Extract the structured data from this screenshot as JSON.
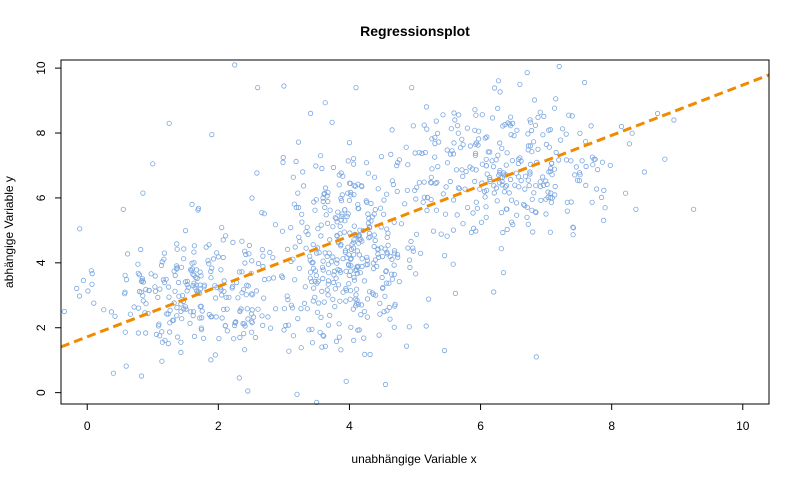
{
  "chart_data": {
    "type": "scatter",
    "title": "Regressionsplot",
    "xlabel": "unabhängige Variable x",
    "ylabel": "abhängige Variable y",
    "xlim": [
      -0.4,
      10.4
    ],
    "ylim": [
      -0.35,
      10.25
    ],
    "xticks": [
      0,
      2,
      4,
      6,
      8,
      10
    ],
    "yticks": [
      0,
      2,
      4,
      6,
      8,
      10
    ],
    "point_color": "#7aa6e0",
    "regression_line": {
      "intercept": 1.72,
      "slope": 0.776,
      "color": "#f08a00",
      "style": "dashed"
    },
    "clusters": [
      {
        "cx": 1.7,
        "cy": 3.1,
        "sx": 0.75,
        "sy": 1.0,
        "n": 260
      },
      {
        "cx": 4.0,
        "cy": 4.4,
        "sx": 0.55,
        "sy": 1.5,
        "n": 360
      },
      {
        "cx": 6.4,
        "cy": 6.9,
        "sx": 0.85,
        "sy": 1.05,
        "n": 300
      }
    ],
    "outliers": [
      {
        "x": 2.25,
        "y": 10.1
      },
      {
        "x": 7.2,
        "y": 10.05
      },
      {
        "x": 9.25,
        "y": 5.65
      },
      {
        "x": 8.95,
        "y": 8.4
      },
      {
        "x": 3.5,
        "y": -0.3
      },
      {
        "x": 3.2,
        "y": -0.05
      },
      {
        "x": 5.45,
        "y": 1.3
      },
      {
        "x": 6.85,
        "y": 1.1
      },
      {
        "x": 1.25,
        "y": 8.3
      },
      {
        "x": 0.4,
        "y": 0.6
      },
      {
        "x": -0.35,
        "y": 2.5
      },
      {
        "x": 2.6,
        "y": 9.4
      },
      {
        "x": 3.0,
        "y": 9.45
      },
      {
        "x": 4.1,
        "y": 9.4
      },
      {
        "x": 4.95,
        "y": 9.4
      },
      {
        "x": 6.6,
        "y": 9.5
      },
      {
        "x": 1.9,
        "y": 7.95
      },
      {
        "x": 1.0,
        "y": 7.05
      },
      {
        "x": 0.85,
        "y": 6.15
      },
      {
        "x": 0.55,
        "y": 5.65
      },
      {
        "x": 2.45,
        "y": 0.05
      },
      {
        "x": 4.55,
        "y": 0.25
      },
      {
        "x": 3.95,
        "y": 0.35
      },
      {
        "x": 7.9,
        "y": 5.7
      },
      {
        "x": 8.5,
        "y": 6.8
      },
      {
        "x": 6.35,
        "y": 3.7
      },
      {
        "x": 6.2,
        "y": 3.1
      },
      {
        "x": 8.15,
        "y": 8.2
      },
      {
        "x": 8.7,
        "y": 8.6
      }
    ]
  }
}
